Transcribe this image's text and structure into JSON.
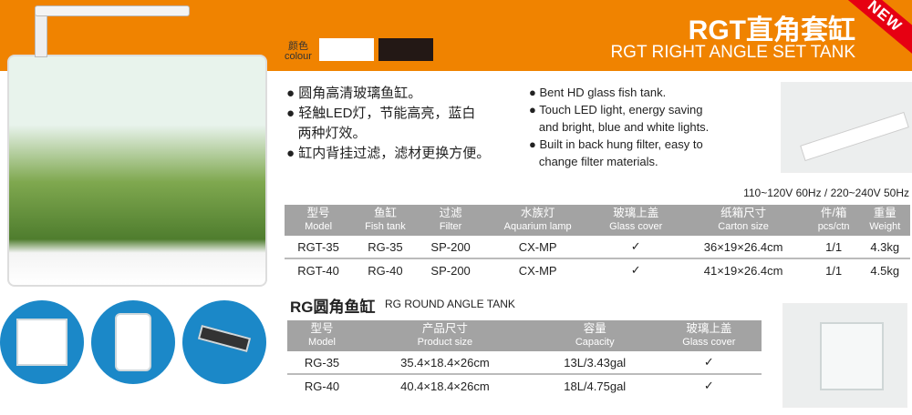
{
  "header": {
    "title_cn": "RGT直角套缸",
    "title_en": "RGT RIGHT ANGLE SET TANK",
    "badge": "NEW",
    "colour_label_cn": "颜色",
    "colour_label_en": "colour",
    "colours": [
      "#ffffff",
      "#231815"
    ]
  },
  "colors": {
    "band": "#f08300",
    "badge": "#e60012",
    "table_header": "#a3a3a3"
  },
  "features_cn": [
    "● 圆角高清玻璃鱼缸。",
    "● 轻触LED灯，节能高亮，蓝白",
    "   两种灯效。",
    "● 缸内背挂过滤，滤材更换方便。"
  ],
  "features_en": [
    "● Bent HD glass fish tank.",
    "● Touch LED light, energy saving",
    "   and bright, blue and white lights.",
    "● Built in back hung filter, easy to",
    "   change filter materials."
  ],
  "voltage": "110~120V 60Hz / 220~240V 50Hz",
  "table1": {
    "headers": [
      [
        "型号",
        "Model"
      ],
      [
        "鱼缸",
        "Fish tank"
      ],
      [
        "过滤",
        "Filter"
      ],
      [
        "水族灯",
        "Aquarium lamp"
      ],
      [
        "玻璃上盖",
        "Glass cover"
      ],
      [
        "纸箱尺寸",
        "Carton size"
      ],
      [
        "件/箱",
        "pcs/ctn"
      ],
      [
        "重量",
        "Weight"
      ]
    ],
    "rows": [
      [
        "RGT-35",
        "RG-35",
        "SP-200",
        "CX-MP",
        "✓",
        "36×19×26.4cm",
        "1/1",
        "4.3kg"
      ],
      [
        "RGT-40",
        "RG-40",
        "SP-200",
        "CX-MP",
        "✓",
        "41×19×26.4cm",
        "1/1",
        "4.5kg"
      ]
    ]
  },
  "table2": {
    "title_cn": "RG圆角鱼缸",
    "title_en": "RG ROUND ANGLE TANK",
    "headers": [
      [
        "型号",
        "Model"
      ],
      [
        "产品尺寸",
        "Product size"
      ],
      [
        "容量",
        "Capacity"
      ],
      [
        "玻璃上盖",
        "Glass cover"
      ]
    ],
    "rows": [
      [
        "RG-35",
        "35.4×18.4×26cm",
        "13L/3.43gal",
        "✓"
      ],
      [
        "RG-40",
        "40.4×18.4×26cm",
        "18L/4.75gal",
        "✓"
      ]
    ]
  }
}
